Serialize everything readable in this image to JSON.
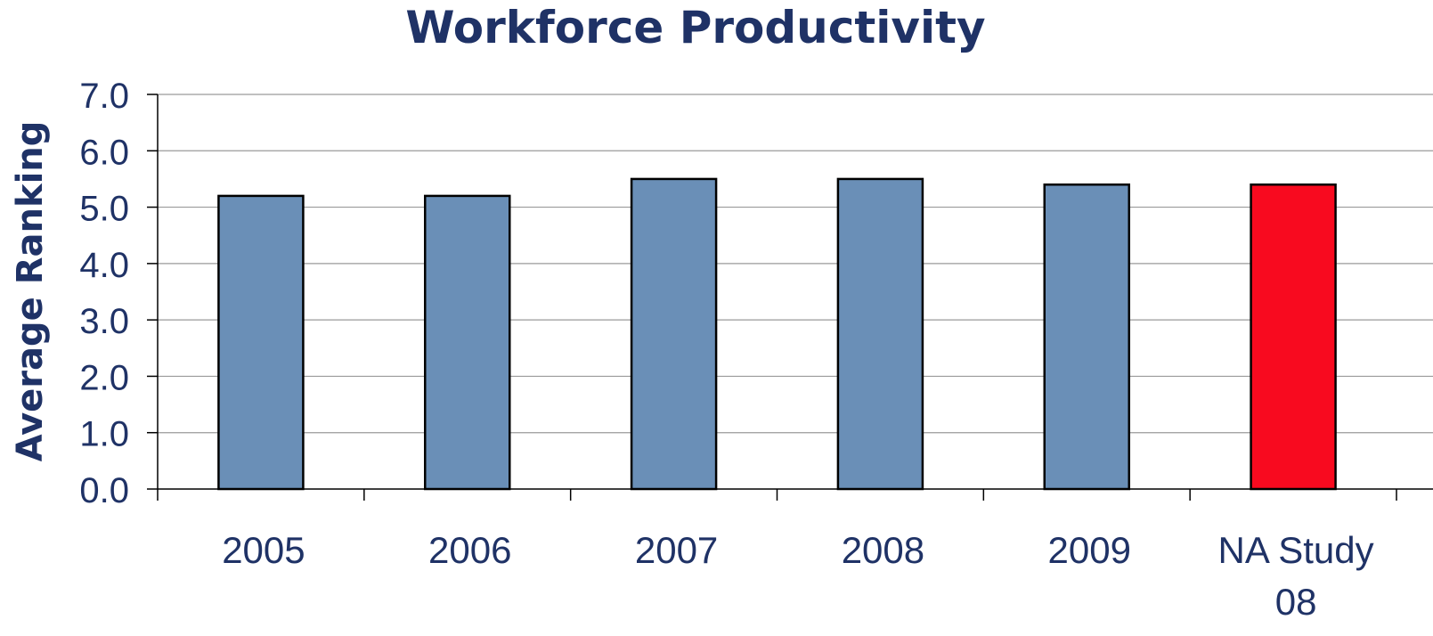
{
  "chart_data": {
    "type": "bar",
    "title": "Workforce Productivity",
    "xlabel": "",
    "ylabel": "Average Ranking",
    "ylim": [
      0,
      7
    ],
    "yticks": [
      "0.0",
      "1.0",
      "2.0",
      "3.0",
      "4.0",
      "5.0",
      "6.0",
      "7.0"
    ],
    "categories": [
      "2005",
      "2006",
      "2007",
      "2008",
      "2009",
      "NA Study 08"
    ],
    "values": [
      5.2,
      5.2,
      5.5,
      5.5,
      5.4,
      5.4
    ],
    "grid": true,
    "legend": "none",
    "colors": {
      "bar": "#6a8fb7",
      "highlight_bar": "#f80a1f",
      "text": "#1f3266",
      "grid": "#9a9a9a",
      "axis": "#000000",
      "bar_outline": "#000000"
    },
    "highlight_categories": [
      "NA Study 08"
    ]
  }
}
